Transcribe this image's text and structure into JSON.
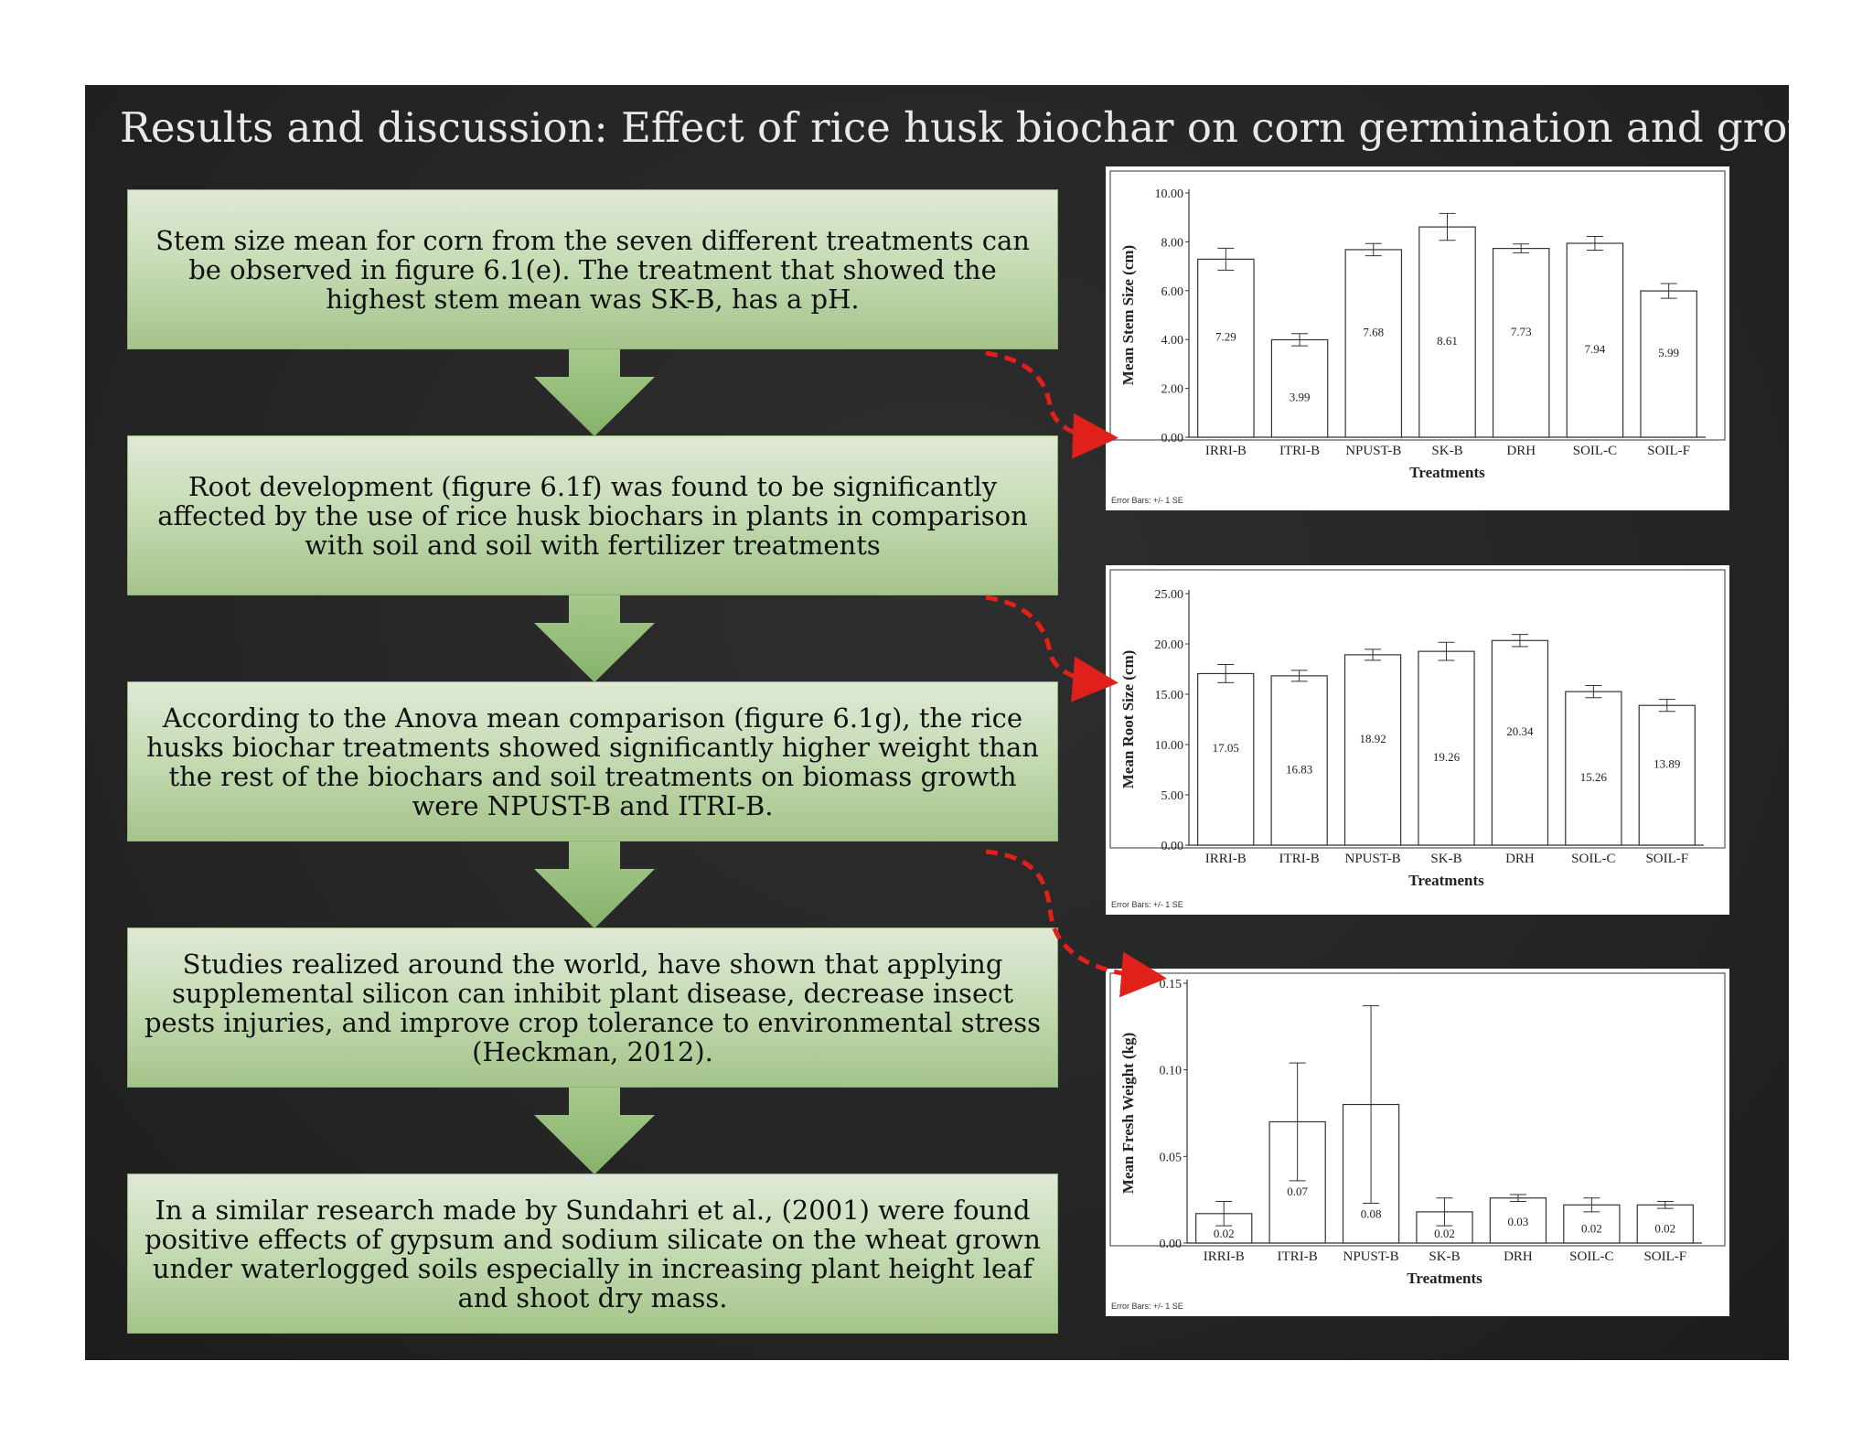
{
  "title": "Results and discussion:  Effect of rice husk biochar on corn germination and growth",
  "colors": {
    "arrow_red": "#e0201a",
    "box_green": "#a4c48a",
    "background": "#262626"
  },
  "boxes": [
    "Stem size mean for corn from the seven different treatments can be observed in figure 6.1(e). The treatment that showed the highest stem mean was SK-B, has a pH.",
    "Root development (figure 6.1f) was found to be significantly affected by the use of rice husk biochars in plants in comparison with soil and soil with fertilizer treatments",
    "According to the Anova mean comparison (figure 6.1g), the rice husks biochar treatments showed significantly higher weight than the rest of the biochars and soil treatments on biomass growth were NPUST-B and ITRI-B.",
    "Studies realized around the world, have shown that applying supplemental silicon can inhibit plant disease, decrease insect pests injuries, and improve crop tolerance to environmental stress (Heckman, 2012).",
    "In a similar research made by Sundahri et al., (2001) were found positive effects of gypsum and sodium silicate on the wheat grown under waterlogged soils especially in increasing plant height leaf and shoot dry mass."
  ],
  "chart_data": [
    {
      "type": "bar",
      "categories": [
        "IRRI-B",
        "ITRI-B",
        "NPUST-B",
        "SK-B",
        "DRH",
        "SOIL-C",
        "SOIL-F"
      ],
      "values": [
        7.29,
        3.99,
        7.68,
        8.61,
        7.73,
        7.94,
        5.99
      ],
      "value_labels": [
        "7.29",
        "3.99",
        "7.68",
        "8.61",
        "7.73",
        "7.94",
        "5.99"
      ],
      "error": [
        0.45,
        0.25,
        0.25,
        0.55,
        0.18,
        0.28,
        0.3
      ],
      "ylim": [
        0,
        10
      ],
      "yticks": [
        0,
        2,
        4,
        6,
        8,
        10
      ],
      "ytick_labels": [
        "0.00",
        "2.00",
        "4.00",
        "6.00",
        "8.00",
        "10.00"
      ],
      "xlabel": "Treatments",
      "ylabel": "Mean Stem Size (cm)",
      "note": "Error Bars: +/- 1 SE"
    },
    {
      "type": "bar",
      "categories": [
        "IRRI-B",
        "ITRI-B",
        "NPUST-B",
        "SK-B",
        "DRH",
        "SOIL-C",
        "SOIL-F"
      ],
      "values": [
        17.05,
        16.83,
        18.92,
        19.26,
        20.34,
        15.26,
        13.89
      ],
      "value_labels": [
        "17.05",
        "16.83",
        "18.92",
        "19.26",
        "20.34",
        "15.26",
        "13.89"
      ],
      "error": [
        0.9,
        0.55,
        0.55,
        0.9,
        0.6,
        0.6,
        0.6
      ],
      "ylim": [
        0,
        25
      ],
      "yticks": [
        0,
        5,
        10,
        15,
        20,
        25
      ],
      "ytick_labels": [
        "0.00",
        "5.00",
        "10.00",
        "15.00",
        "20.00",
        "25.00"
      ],
      "xlabel": "Treatments",
      "ylabel": "Mean Root Size (cm)",
      "note": "Error Bars: +/- 1 SE"
    },
    {
      "type": "bar",
      "categories": [
        "IRRI-B",
        "ITRI-B",
        "NPUST-B",
        "SK-B",
        "DRH",
        "SOIL-C",
        "SOIL-F"
      ],
      "values": [
        0.017,
        0.07,
        0.08,
        0.018,
        0.026,
        0.022,
        0.022
      ],
      "value_labels": [
        "0.02",
        "0.07",
        "0.08",
        "0.02",
        "0.03",
        "0.02",
        "0.02"
      ],
      "error": [
        0.007,
        0.034,
        0.057,
        0.008,
        0.002,
        0.004,
        0.002
      ],
      "ylim": [
        0,
        0.15
      ],
      "yticks": [
        0,
        0.05,
        0.1,
        0.15
      ],
      "ytick_labels": [
        "0.00",
        "0.05",
        "0.10",
        "0.15"
      ],
      "xlabel": "Treatments",
      "ylabel": "Mean Fresh Weight (kg)",
      "note": "Error Bars: +/- 1 SE"
    }
  ]
}
